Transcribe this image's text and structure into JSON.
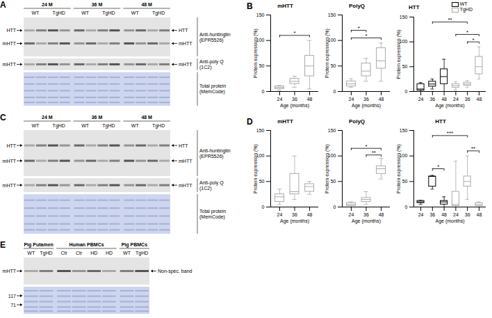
{
  "chart_data": [
    {
      "type": "box",
      "panel": "B",
      "title": "mHTT",
      "x_label": "Age (months)",
      "y_label": "Protein expression (%)",
      "categories": [
        "24",
        "36",
        "48"
      ],
      "color": "#aaaaaa",
      "boxes": [
        {
          "min": 2,
          "q1": 5,
          "median": 8,
          "q3": 10,
          "max": 12
        },
        {
          "min": 8,
          "q1": 15,
          "median": 20,
          "q3": 25,
          "max": 30
        },
        {
          "min": 5,
          "q1": 30,
          "median": 50,
          "q3": 70,
          "max": 100
        }
      ],
      "ylim": [
        0,
        150
      ],
      "yticks": [
        0,
        50,
        100,
        150
      ],
      "annotations": [
        {
          "text": "*",
          "y": 110,
          "x1": {
            "category": "24"
          },
          "x2": {
            "category": "48"
          }
        }
      ]
    },
    {
      "type": "box",
      "title": "PolyQ",
      "x_label": "Age (months)",
      "y_label": "Protein expression (%)",
      "categories": [
        "24",
        "36",
        "48"
      ],
      "color": "#aaaaaa",
      "boxes": [
        {
          "min": 8,
          "q1": 10,
          "median": 15,
          "q3": 20,
          "max": 25
        },
        {
          "min": 20,
          "q1": 30,
          "median": 40,
          "q3": 55,
          "max": 65
        },
        {
          "min": 20,
          "q1": 45,
          "median": 60,
          "q3": 85,
          "max": 95
        }
      ],
      "ylim": [
        0,
        150
      ],
      "yticks": [
        0,
        50,
        100,
        150
      ],
      "annotations": [
        {
          "text": "*",
          "y": 120,
          "x1": {
            "category": "24"
          },
          "x2": {
            "category": "36"
          }
        },
        {
          "text": "*",
          "y": 105,
          "x1": {
            "category": "24"
          },
          "x2": {
            "category": "48"
          }
        }
      ]
    },
    {
      "type": "box",
      "title": "HTT",
      "x_label": "Age (months)",
      "y_label": "Protein expression (%)",
      "categories": [
        "24",
        "36",
        "48"
      ],
      "legend": "top-right",
      "series": [
        {
          "name": "WT",
          "color": "#000000",
          "boxes": [
            {
              "min": 0,
              "q1": 2,
              "median": 5,
              "q3": 15,
              "max": 18
            },
            {
              "min": 5,
              "q1": 10,
              "median": 15,
              "q3": 20,
              "max": 25
            },
            {
              "min": 0,
              "q1": 15,
              "median": 30,
              "q3": 45,
              "max": 65
            }
          ]
        },
        {
          "name": "TgHD",
          "color": "#aaaaaa",
          "boxes": [
            {
              "min": 3,
              "q1": 8,
              "median": 12,
              "q3": 15,
              "max": 20
            },
            {
              "min": 8,
              "q1": 12,
              "median": 15,
              "q3": 18,
              "max": 22
            },
            {
              "min": 25,
              "q1": 35,
              "median": 50,
              "q3": 70,
              "max": 90
            }
          ]
        }
      ],
      "ylim": [
        0,
        150
      ],
      "yticks": [
        0,
        50,
        100,
        150
      ],
      "annotations": [
        {
          "text": "**",
          "y": 140,
          "x1": {
            "series": "WT"
          },
          "x2": {
            "series": "TgHD"
          }
        },
        {
          "text": "*",
          "y": 115,
          "x1": {
            "series": "TgHD",
            "category": "24"
          },
          "x2": {
            "series": "TgHD",
            "category": "48"
          }
        },
        {
          "text": "*",
          "y": 100,
          "x1": {
            "series": "TgHD",
            "category": "36"
          },
          "x2": {
            "series": "TgHD",
            "category": "48"
          }
        }
      ]
    },
    {
      "type": "box",
      "panel": "D",
      "title": "mHTT",
      "x_label": "Age (months)",
      "y_label": "Protein expression (%)",
      "categories": [
        "24",
        "36",
        "48"
      ],
      "color": "#aaaaaa",
      "boxes": [
        {
          "min": 5,
          "q1": 10,
          "median": 20,
          "q3": 25,
          "max": 35
        },
        {
          "min": 15,
          "q1": 25,
          "median": 30,
          "q3": 65,
          "max": 100
        },
        {
          "min": 25,
          "q1": 30,
          "median": 40,
          "q3": 45,
          "max": 50
        }
      ],
      "ylim": [
        0,
        150
      ],
      "yticks": [
        0,
        50,
        100,
        150
      ]
    },
    {
      "type": "box",
      "title": "PolyQ",
      "x_label": "Age (months)",
      "y_label": "Protein expression (%)",
      "categories": [
        "24",
        "36",
        "48"
      ],
      "color": "#aaaaaa",
      "boxes": [
        {
          "min": 0,
          "q1": 2,
          "median": 5,
          "q3": 8,
          "max": 10
        },
        {
          "min": 5,
          "q1": 10,
          "median": 15,
          "q3": 18,
          "max": 30
        },
        {
          "min": 55,
          "q1": 65,
          "median": 75,
          "q3": 80,
          "max": 95
        }
      ],
      "ylim": [
        0,
        150
      ],
      "yticks": [
        0,
        50,
        100,
        150
      ],
      "annotations": [
        {
          "text": "*",
          "y": 115,
          "x1": {
            "category": "24"
          },
          "x2": {
            "category": "48"
          }
        },
        {
          "text": "**",
          "y": 102,
          "x1": {
            "category": "36"
          },
          "x2": {
            "category": "48"
          }
        }
      ]
    },
    {
      "type": "box",
      "title": "HTT",
      "x_label": "Age (months)",
      "y_label": "Protein expression (%)",
      "categories": [
        "24",
        "36",
        "48"
      ],
      "series": [
        {
          "name": "WT",
          "color": "#000000",
          "boxes": [
            {
              "min": 5,
              "q1": 8,
              "median": 10,
              "q3": 12,
              "max": 13
            },
            {
              "min": 35,
              "q1": 40,
              "median": 60,
              "q3": 60,
              "max": 62
            },
            {
              "min": 0,
              "q1": 5,
              "median": 10,
              "q3": 12,
              "max": 20
            }
          ]
        },
        {
          "name": "TgHD",
          "color": "#aaaaaa",
          "boxes": [
            {
              "min": 0,
              "q1": 2,
              "median": 5,
              "q3": 30,
              "max": 90
            },
            {
              "min": 15,
              "q1": 40,
              "median": 50,
              "q3": 60,
              "max": 100
            },
            {
              "min": 0,
              "q1": 2,
              "median": 5,
              "q3": 8,
              "max": 10
            }
          ]
        }
      ],
      "ylim": [
        0,
        150
      ],
      "yticks": [
        0,
        50,
        100,
        150
      ],
      "annotations": [
        {
          "text": "***",
          "y": 140,
          "x1": {
            "series": "WT"
          },
          "x2": {
            "series": "TgHD"
          }
        },
        {
          "text": "*",
          "y": 75,
          "x1": {
            "series": "WT",
            "category": "36"
          },
          "x2": {
            "series": "WT",
            "category": "48"
          }
        },
        {
          "text": "**",
          "y": 110,
          "x1": {
            "series": "TgHD",
            "category": "36"
          },
          "x2": {
            "series": "TgHD",
            "category": "48"
          }
        }
      ]
    }
  ],
  "blots": [
    {
      "panel": "A",
      "groups": [
        {
          "label": "24 M",
          "lanes": [
            "WT",
            "TgHD"
          ]
        },
        {
          "label": "36 M",
          "lanes": [
            "WT",
            "TgHD"
          ]
        },
        {
          "label": "48 M",
          "lanes": [
            "WT",
            "TgHD"
          ]
        }
      ],
      "rows": [
        {
          "label": "Anti-huntingtin (EPR5526)",
          "left": [
            "HTT",
            "mHTT"
          ],
          "right": [
            "HTT",
            "mHTT"
          ]
        },
        {
          "label": "Anti-poly Q (1C2)",
          "left": [
            "mHTT"
          ],
          "right": [
            "mHTT"
          ]
        },
        {
          "label": "Total protein (MemCode)"
        }
      ]
    },
    {
      "panel": "C",
      "groups": [
        {
          "label": "24 M",
          "lanes": [
            "WT",
            "TgHD"
          ]
        },
        {
          "label": "36 M",
          "lanes": [
            "WT",
            "TgHD"
          ]
        },
        {
          "label": "48 M",
          "lanes": [
            "WT",
            "TgHD"
          ]
        }
      ],
      "rows": [
        {
          "label": "Anti-huntingtin (EPR5526)",
          "left": [
            "HTT",
            "mHTT"
          ],
          "right": [
            "HTT",
            "mHTT"
          ]
        },
        {
          "label": "Anti-poly Q (1C2)",
          "left": [
            "mHTT"
          ],
          "right": [
            "mHTT"
          ]
        },
        {
          "label": "Total protein (MemCode)"
        }
      ]
    },
    {
      "panel": "E",
      "groups": [
        {
          "label": "Pig Putamen",
          "lanes": [
            "WT",
            "TgHD"
          ]
        },
        {
          "label": "Human PBMCs",
          "lanes": [
            "Ctr",
            "Ctr",
            "HD",
            "HD"
          ]
        },
        {
          "label": "Pig PBMCs",
          "lanes": [
            "WT",
            "TgHD"
          ]
        }
      ],
      "rows": [
        {
          "left": [
            "mHTT"
          ],
          "right": [
            "Non-spec. band"
          ]
        },
        {
          "markers": [
            117,
            71
          ]
        }
      ]
    }
  ]
}
